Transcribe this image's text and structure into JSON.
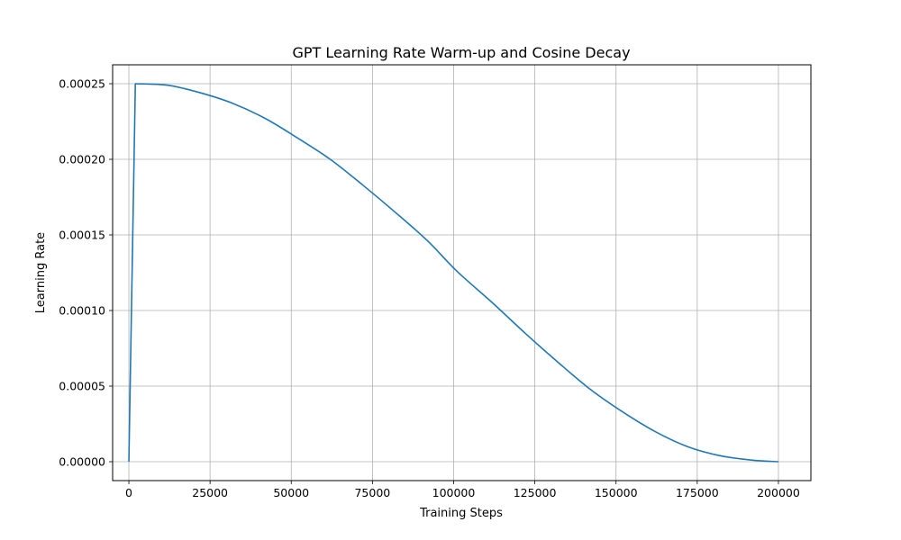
{
  "chart_data": {
    "type": "line",
    "title": "GPT Learning Rate Warm-up and Cosine Decay",
    "xlabel": "Training Steps",
    "ylabel": "Learning Rate",
    "xlim": [
      -5000,
      210000
    ],
    "ylim": [
      -1.25e-05,
      0.0002625
    ],
    "x_ticks": [
      0,
      25000,
      50000,
      75000,
      100000,
      125000,
      150000,
      175000,
      200000
    ],
    "x_tick_labels": [
      "0",
      "25000",
      "50000",
      "75000",
      "100000",
      "125000",
      "150000",
      "175000",
      "200000"
    ],
    "y_ticks": [
      0,
      5e-05,
      0.0001,
      0.00015,
      0.0002,
      0.00025
    ],
    "y_tick_labels": [
      "0.00000",
      "0.00005",
      "0.00010",
      "0.00015",
      "0.00020",
      "0.00025"
    ],
    "grid": true,
    "series": [
      {
        "color": "#1f77b4",
        "points": [
          [
            0,
            0
          ],
          [
            2000,
            0.00025
          ],
          [
            12000,
            0.000249
          ],
          [
            22000,
            0.000244
          ],
          [
            32000,
            0.000237
          ],
          [
            42000,
            0.000227
          ],
          [
            52000,
            0.000214
          ],
          [
            62000,
            0.0002
          ],
          [
            72000,
            0.000183
          ],
          [
            82000,
            0.000165
          ],
          [
            92000,
            0.000146
          ],
          [
            101000,
            0.000126
          ],
          [
            112000,
            0.000105
          ],
          [
            122000,
            8.5e-05
          ],
          [
            132000,
            6.6e-05
          ],
          [
            142000,
            4.8e-05
          ],
          [
            152000,
            3.3e-05
          ],
          [
            162000,
            2e-05
          ],
          [
            172000,
            1e-05
          ],
          [
            182000,
            4e-06
          ],
          [
            192000,
            1e-06
          ],
          [
            200000,
            0
          ]
        ]
      }
    ]
  }
}
